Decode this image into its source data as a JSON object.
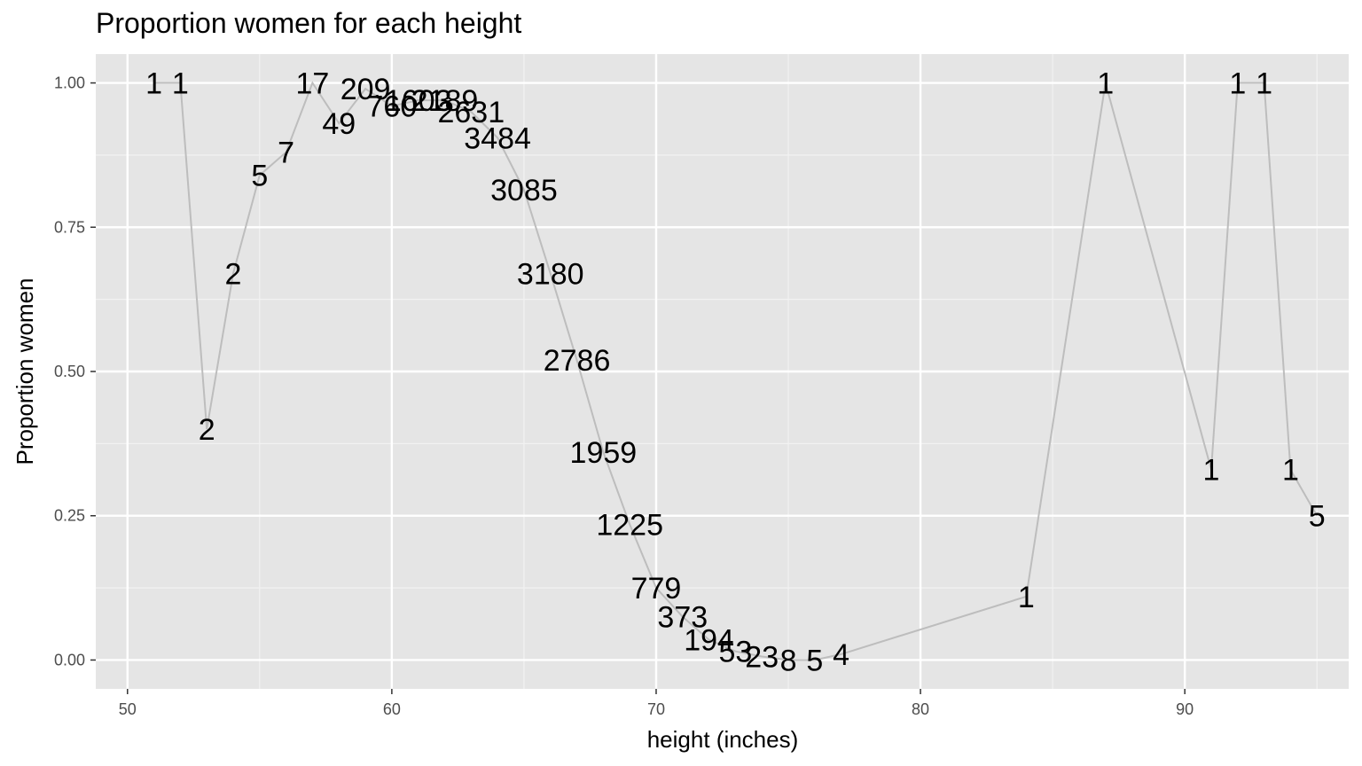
{
  "chart_data": {
    "type": "line",
    "title": "Proportion women for each height",
    "xlabel": "height (inches)",
    "ylabel": "Proportion women",
    "xlim": [
      48.8,
      96.2
    ],
    "ylim": [
      -0.05,
      1.05
    ],
    "x_ticks": [
      50,
      60,
      70,
      80,
      90
    ],
    "x_tick_labels": [
      "50",
      "60",
      "70",
      "80",
      "90"
    ],
    "y_ticks": [
      0,
      0.25,
      0.5,
      0.75,
      1
    ],
    "y_tick_labels": [
      "0.00",
      "0.25",
      "0.50",
      "0.75",
      "1.00"
    ],
    "grid": true,
    "line_color": "#bdbdbd",
    "panel_color": "#e5e5e5",
    "points": [
      {
        "x": 51,
        "y": 1.0,
        "label": "1"
      },
      {
        "x": 52,
        "y": 1.0,
        "label": "1"
      },
      {
        "x": 53,
        "y": 0.4,
        "label": "2"
      },
      {
        "x": 54,
        "y": 0.67,
        "label": "2"
      },
      {
        "x": 55,
        "y": 0.84,
        "label": "5"
      },
      {
        "x": 56,
        "y": 0.88,
        "label": "7"
      },
      {
        "x": 57,
        "y": 1.0,
        "label": "17"
      },
      {
        "x": 58,
        "y": 0.93,
        "label": "49"
      },
      {
        "x": 59,
        "y": 0.99,
        "label": "209"
      },
      {
        "x": 60,
        "y": 0.96,
        "label": "760"
      },
      {
        "x": 61,
        "y": 0.97,
        "label": "1603"
      },
      {
        "x": 62,
        "y": 0.97,
        "label": "2189"
      },
      {
        "x": 63,
        "y": 0.95,
        "label": "2631"
      },
      {
        "x": 64,
        "y": 0.905,
        "label": "3484"
      },
      {
        "x": 65,
        "y": 0.815,
        "label": "3085"
      },
      {
        "x": 66,
        "y": 0.67,
        "label": "3180"
      },
      {
        "x": 67,
        "y": 0.52,
        "label": "2786"
      },
      {
        "x": 68,
        "y": 0.36,
        "label": "1959"
      },
      {
        "x": 69,
        "y": 0.235,
        "label": "1225"
      },
      {
        "x": 70,
        "y": 0.125,
        "label": "779"
      },
      {
        "x": 71,
        "y": 0.075,
        "label": "373"
      },
      {
        "x": 72,
        "y": 0.035,
        "label": "194"
      },
      {
        "x": 73,
        "y": 0.015,
        "label": "53"
      },
      {
        "x": 74,
        "y": 0.006,
        "label": "23"
      },
      {
        "x": 75,
        "y": 0.0,
        "label": "8"
      },
      {
        "x": 76,
        "y": 0.0,
        "label": "5"
      },
      {
        "x": 77,
        "y": 0.01,
        "label": "4"
      },
      {
        "x": 84,
        "y": 0.11,
        "label": "1"
      },
      {
        "x": 87,
        "y": 1.0,
        "label": "1"
      },
      {
        "x": 91,
        "y": 0.33,
        "label": "1"
      },
      {
        "x": 92,
        "y": 1.0,
        "label": "1"
      },
      {
        "x": 93,
        "y": 1.0,
        "label": "1"
      },
      {
        "x": 94,
        "y": 0.33,
        "label": "1"
      },
      {
        "x": 95,
        "y": 0.25,
        "label": "5"
      }
    ]
  }
}
